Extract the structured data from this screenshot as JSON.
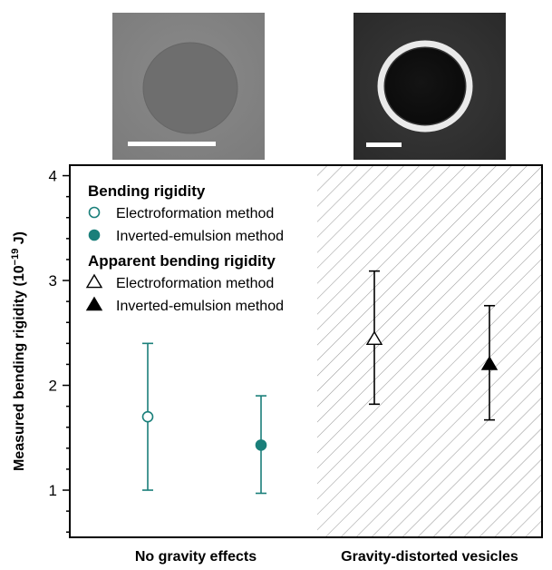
{
  "chart_data": {
    "type": "scatter",
    "ylabel_main": "Measured bending rigidity (10",
    "ylabel_exp": "−19",
    "ylabel_tail": " J)",
    "ylim": [
      0.55,
      4.1
    ],
    "yticks": [
      "1",
      "2",
      "3",
      "4"
    ],
    "categories": [
      "No gravity effects",
      "Gravity-distorted vesicles"
    ],
    "shaded_region": "Gravity-distorted vesicles",
    "legend": {
      "groups": [
        {
          "title": "Bending rigidity",
          "entries": [
            {
              "label": "Electroformation method",
              "marker": "circle-open",
              "color": "#1a7f7a"
            },
            {
              "label": "Inverted-emulsion method",
              "marker": "circle-filled",
              "color": "#1a7f7a"
            }
          ]
        },
        {
          "title": "Apparent bending rigidity",
          "entries": [
            {
              "label": "Electroformation method",
              "marker": "triangle-open",
              "color": "#000000"
            },
            {
              "label": "Inverted-emulsion method",
              "marker": "triangle-filled",
              "color": "#000000"
            }
          ]
        }
      ]
    },
    "series": [
      {
        "name": "Electroformation method",
        "category": "No gravity effects",
        "y": 1.7,
        "yerr_low": 1.0,
        "yerr_high": 2.4,
        "marker": "circle-open",
        "color": "#1a7f7a"
      },
      {
        "name": "Inverted-emulsion method",
        "category": "No gravity effects",
        "y": 1.43,
        "yerr_low": 0.97,
        "yerr_high": 1.9,
        "marker": "circle-filled",
        "color": "#1a7f7a"
      },
      {
        "name": "Electroformation method",
        "category": "Gravity-distorted vesicles",
        "y": 2.44,
        "yerr_low": 1.82,
        "yerr_high": 3.09,
        "marker": "triangle-open",
        "color": "#000000"
      },
      {
        "name": "Inverted-emulsion method",
        "category": "Gravity-distorted vesicles",
        "y": 2.2,
        "yerr_low": 1.67,
        "yerr_high": 2.76,
        "marker": "triangle-filled",
        "color": "#000000"
      }
    ]
  },
  "images": [
    {
      "name": "micrograph-gray-vesicle",
      "style": "faint dark disk on gray background with white scale bar"
    },
    {
      "name": "micrograph-phase-contrast-vesicle",
      "style": "dark disk with bright halo on dark background with white scale bar"
    }
  ]
}
